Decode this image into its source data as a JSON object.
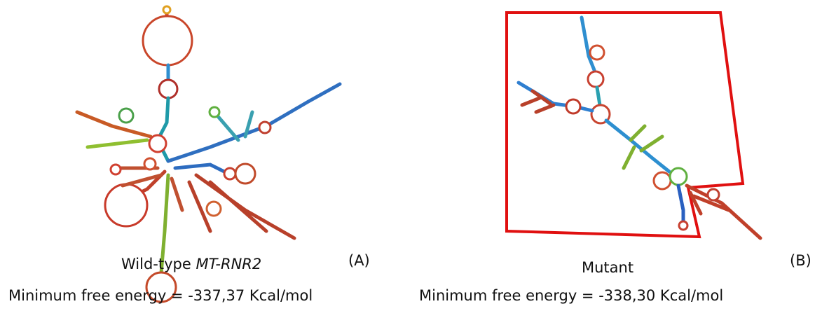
{
  "panels": [
    {
      "label": "(A)",
      "name": "Wild-type ",
      "name_italic": "MT-RNR2",
      "energy": "Minimum free energy = -337,37 Kcal/mol"
    },
    {
      "label": "(B)",
      "name": "Mutant",
      "energy": "Minimum free energy = -338,30 Kcal/mol"
    }
  ]
}
